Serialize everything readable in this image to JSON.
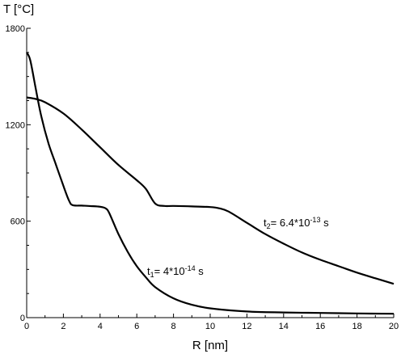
{
  "chart_data": {
    "type": "line",
    "xlabel": "R [nm]",
    "ylabel": "T [°C]",
    "xlim": [
      0,
      20
    ],
    "ylim": [
      0,
      1800
    ],
    "x_ticks": [
      "0",
      "2",
      "4",
      "6",
      "8",
      "10",
      "12",
      "14",
      "16",
      "18",
      "20"
    ],
    "y_ticks": [
      "0",
      "600",
      "1200",
      "1800"
    ],
    "grid": false,
    "series": [
      {
        "name_parts": {
          "var": "t",
          "sub": "1",
          "eq": "= 4*10",
          "exp": "-14",
          "unit": " s"
        },
        "points": [
          [
            0,
            1650
          ],
          [
            0.2,
            1600
          ],
          [
            0.5,
            1420
          ],
          [
            0.8,
            1250
          ],
          [
            1.2,
            1080
          ],
          [
            1.6,
            950
          ],
          [
            2.0,
            820
          ],
          [
            2.3,
            730
          ],
          [
            2.5,
            700
          ],
          [
            3.0,
            697
          ],
          [
            3.5,
            694
          ],
          [
            4.0,
            690
          ],
          [
            4.3,
            680
          ],
          [
            4.5,
            650
          ],
          [
            5.0,
            520
          ],
          [
            5.5,
            410
          ],
          [
            6.0,
            320
          ],
          [
            6.5,
            250
          ],
          [
            7.0,
            190
          ],
          [
            8.0,
            120
          ],
          [
            9.0,
            80
          ],
          [
            10.0,
            58
          ],
          [
            12.0,
            38
          ],
          [
            14.0,
            32
          ],
          [
            16.0,
            29
          ],
          [
            18.0,
            26
          ],
          [
            20.0,
            24
          ]
        ]
      },
      {
        "name_parts": {
          "var": "t",
          "sub": "2",
          "eq": "= 6.4*10",
          "exp": "-13",
          "unit": " s"
        },
        "points": [
          [
            0,
            1370
          ],
          [
            0.5,
            1360
          ],
          [
            1.0,
            1340
          ],
          [
            2.0,
            1270
          ],
          [
            3.0,
            1170
          ],
          [
            4.0,
            1060
          ],
          [
            5.0,
            950
          ],
          [
            6.0,
            855
          ],
          [
            6.5,
            800
          ],
          [
            7.0,
            710
          ],
          [
            7.5,
            695
          ],
          [
            8.0,
            695
          ],
          [
            9.0,
            692
          ],
          [
            10.0,
            688
          ],
          [
            10.5,
            680
          ],
          [
            11.0,
            660
          ],
          [
            12.0,
            590
          ],
          [
            13.0,
            520
          ],
          [
            14.0,
            460
          ],
          [
            15.0,
            405
          ],
          [
            16.0,
            360
          ],
          [
            17.0,
            320
          ],
          [
            18.0,
            280
          ],
          [
            19.0,
            245
          ],
          [
            20.0,
            210
          ]
        ]
      }
    ]
  }
}
